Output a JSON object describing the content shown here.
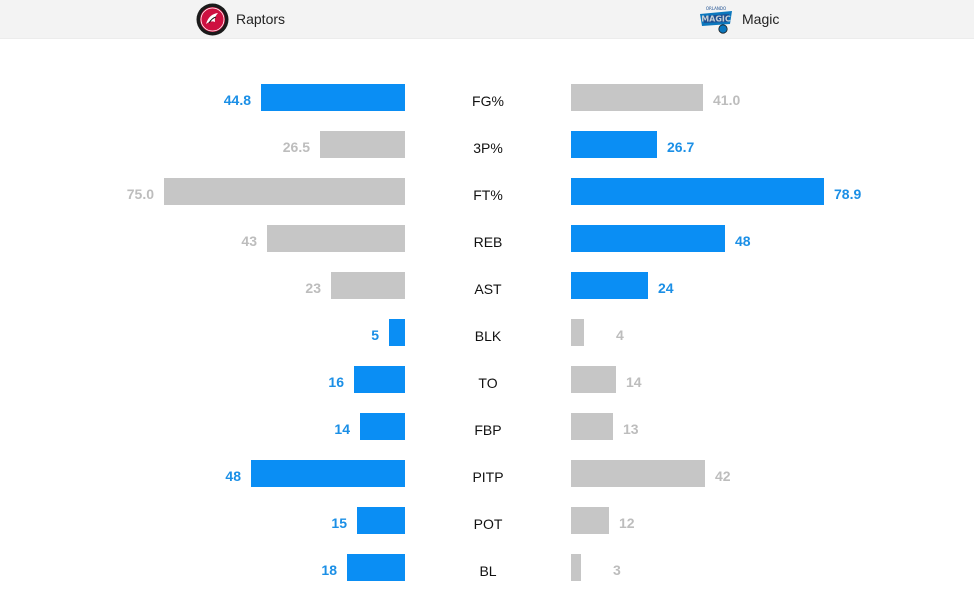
{
  "header": {
    "left_team": "Raptors",
    "right_team": "Magic",
    "left_logo_icon": "raptors-logo",
    "right_logo_icon": "magic-logo"
  },
  "colors": {
    "higher": "#0a8ef4",
    "lower": "#c6c6c6",
    "higher_text": "#1b8fe6",
    "lower_text": "#bdbdbd"
  },
  "chart_data": {
    "type": "bar",
    "orientation": "horizontal-butterfly",
    "categories": [
      "FG%",
      "3P%",
      "FT%",
      "REB",
      "AST",
      "BLK",
      "TO",
      "FBP",
      "PITP",
      "POT",
      "BL"
    ],
    "series": [
      {
        "name": "Raptors",
        "values": [
          "44.8",
          "26.5",
          "75.0",
          "43",
          "23",
          "5",
          "16",
          "14",
          "48",
          "15",
          "18"
        ]
      },
      {
        "name": "Magic",
        "values": [
          "41.0",
          "26.7",
          "78.9",
          "48",
          "24",
          "4",
          "14",
          "13",
          "42",
          "12",
          "3"
        ]
      }
    ],
    "highlight": [
      "left",
      "right",
      "right",
      "right",
      "right",
      "left",
      "left",
      "left",
      "left",
      "left",
      "left"
    ],
    "grid": false
  }
}
